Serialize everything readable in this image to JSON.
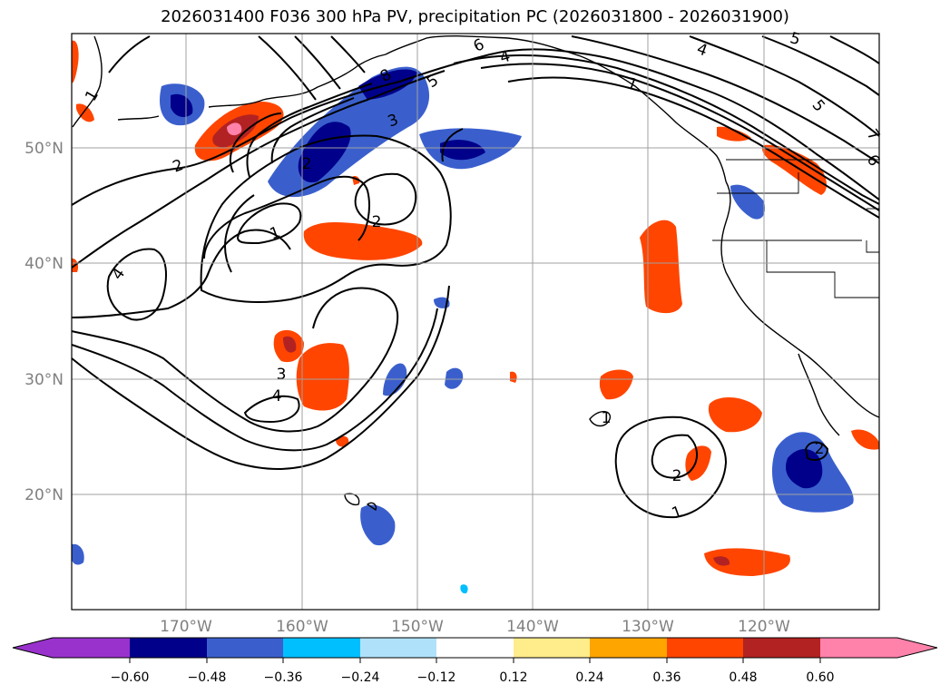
{
  "title": "2026031400 F036 300 hPa PV, precipitation PC (2026031800 - 2026031900)",
  "map": {
    "lat_labels": [
      "50°N",
      "40°N",
      "30°N",
      "20°N"
    ],
    "lon_labels": [
      "170°W",
      "160°W",
      "150°W",
      "140°W",
      "130°W",
      "120°W"
    ],
    "label_color": "#808080",
    "contour_labels": [
      "1",
      "2",
      "4",
      "1",
      "2",
      "3",
      "8",
      "6",
      "4",
      "5",
      "5",
      "7",
      "6",
      "1",
      "2",
      "3",
      "4",
      "2",
      "1",
      "2",
      "1",
      "4",
      "5"
    ]
  },
  "colorbar": {
    "ticks": [
      "−0.60",
      "−0.48",
      "−0.36",
      "−0.24",
      "−0.12",
      "0.12",
      "0.24",
      "0.36",
      "0.48",
      "0.60"
    ],
    "colors": [
      "#9932cc",
      "#00008b",
      "#3a5fcd",
      "#00bfff",
      "#afe2fa",
      "#ffffff",
      "#ffec8b",
      "#ffa500",
      "#ff4500",
      "#b22222",
      "#ff82ab"
    ]
  }
}
